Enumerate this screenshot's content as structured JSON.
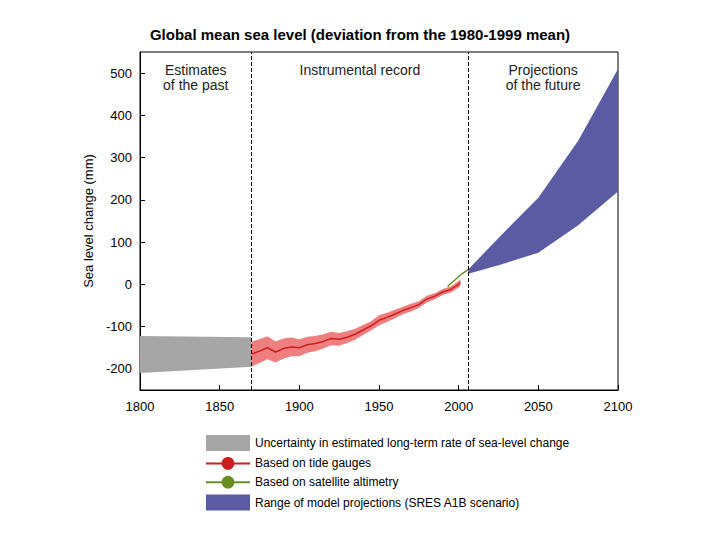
{
  "chart_data": {
    "type": "line",
    "title": "Global mean sea level (deviation from the 1980-1999 mean)",
    "y_label": "Sea level change (mm)",
    "xlim": [
      1800,
      2100
    ],
    "xticks": [
      1800,
      1850,
      1900,
      1950,
      2000,
      2050,
      2100
    ],
    "ylim": [
      -250,
      550
    ],
    "yticks": [
      -200,
      -100,
      0,
      100,
      200,
      300,
      400,
      500
    ],
    "grid": false,
    "dividers": [
      1870,
      2006
    ],
    "annotations": [
      "Estimates\nof the past",
      "Instrumental record",
      "Projections\nof the future"
    ],
    "series": [
      {
        "name": "Uncertainty in estimated long-term rate of sea-level change",
        "type": "band",
        "color": "#a6a6a6",
        "x": [
          1800,
          1870
        ],
        "lower": [
          -210,
          -195
        ],
        "upper": [
          -122,
          -125
        ]
      },
      {
        "name": "Based on tide gauges",
        "type": "line",
        "color": "#cc1f1f",
        "band_color": "#ef7f7f",
        "x": [
          1870,
          1875,
          1880,
          1885,
          1890,
          1895,
          1900,
          1905,
          1910,
          1915,
          1920,
          1925,
          1930,
          1935,
          1940,
          1945,
          1950,
          1955,
          1960,
          1965,
          1970,
          1975,
          1980,
          1985,
          1990,
          1995,
          2000,
          2001
        ],
        "values": [
          -165,
          -158,
          -150,
          -160,
          -152,
          -148,
          -150,
          -143,
          -140,
          -135,
          -128,
          -130,
          -125,
          -118,
          -108,
          -98,
          -85,
          -78,
          -70,
          -62,
          -55,
          -48,
          -35,
          -28,
          -18,
          -12,
          0,
          5
        ],
        "lower": [
          -195,
          -186,
          -177,
          -185,
          -176,
          -170,
          -170,
          -162,
          -158,
          -152,
          -144,
          -145,
          -139,
          -131,
          -120,
          -109,
          -97,
          -89,
          -80,
          -71,
          -64,
          -56,
          -43,
          -35,
          -25,
          -19,
          -8,
          -3
        ],
        "upper": [
          -135,
          -130,
          -123,
          -135,
          -128,
          -126,
          -130,
          -124,
          -122,
          -118,
          -112,
          -115,
          -111,
          -105,
          -96,
          -87,
          -73,
          -67,
          -60,
          -53,
          -46,
          -40,
          -27,
          -21,
          -11,
          -5,
          8,
          13
        ]
      },
      {
        "name": "Based on satellite altimetry",
        "type": "line",
        "color": "#6b8e23",
        "x": [
          1993,
          1996,
          1999,
          2002,
          2006
        ],
        "values": [
          -5,
          5,
          15,
          25,
          35
        ]
      },
      {
        "name": "Range of model projections (SRES A1B scenario)",
        "type": "band",
        "color": "#5b5ba3",
        "x": [
          2006,
          2025,
          2050,
          2075,
          2100
        ],
        "lower": [
          25,
          45,
          75,
          140,
          220
        ],
        "upper": [
          35,
          110,
          205,
          340,
          510
        ]
      }
    ]
  }
}
